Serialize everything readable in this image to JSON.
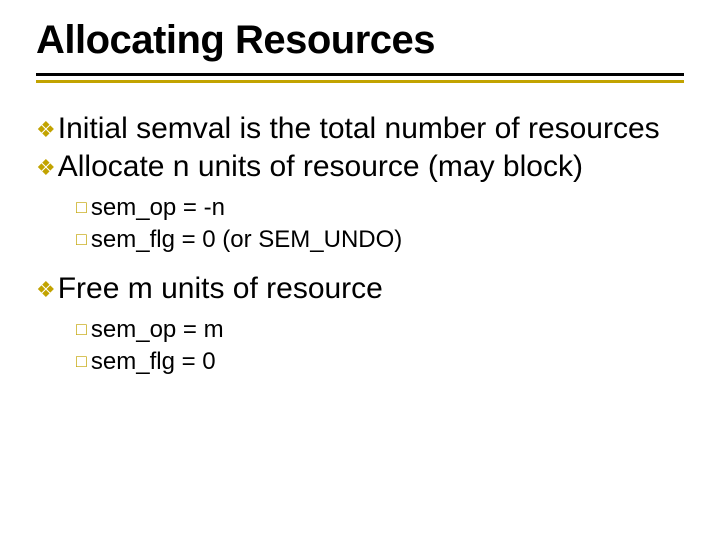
{
  "colors": {
    "background": "#ffffff",
    "text": "#000000",
    "rule_top": "#000000",
    "rule_bottom": "#c2a300",
    "bullet_l1": "#c2a300",
    "bullet_l2": "#c2a300"
  },
  "title": {
    "text": "Allocating Resources",
    "font_size": 40,
    "font_weight": 900
  },
  "rules": {
    "top_thickness": 3,
    "bottom_thickness": 3,
    "gap": 4
  },
  "bullets": {
    "l1_glyph": "❖",
    "l2_glyph": "□",
    "l1_fontsize": 30,
    "l2_fontsize": 24
  },
  "items": [
    {
      "level": 1,
      "text": "Initial semval is the total number of resources"
    },
    {
      "level": 1,
      "text": "Allocate  n units of resource (may block)"
    },
    {
      "level": 2,
      "text": "sem_op = -n"
    },
    {
      "level": 2,
      "text": "sem_flg = 0 (or SEM_UNDO)"
    },
    {
      "level": 1,
      "text": "Free m units of resource"
    },
    {
      "level": 2,
      "text": "sem_op = m"
    },
    {
      "level": 2,
      "text": "sem_flg = 0"
    }
  ]
}
